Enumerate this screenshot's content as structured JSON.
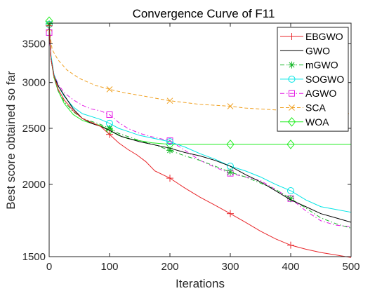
{
  "chart_data": {
    "type": "line",
    "title": "Convergence Curve of F11",
    "xlabel": "Iterations",
    "ylabel": "Best score obtained so far",
    "xlim": [
      0,
      500
    ],
    "ylim": [
      1500,
      3800
    ],
    "yscale": "log",
    "xticks": [
      0,
      100,
      200,
      300,
      400,
      500
    ],
    "yticks": [
      1500,
      2000,
      2500,
      3000,
      3500
    ],
    "grid": false,
    "legend_position": "top-right",
    "series": [
      {
        "name": "EBGWO",
        "color": "#e8262a",
        "linestyle": "solid",
        "marker": "plus",
        "x": [
          0,
          3,
          8,
          15,
          25,
          40,
          55,
          70,
          85,
          100,
          115,
          130,
          145,
          160,
          175,
          200,
          225,
          250,
          275,
          300,
          325,
          350,
          375,
          400,
          425,
          450,
          475,
          500
        ],
        "y": [
          3760,
          3300,
          3080,
          2920,
          2800,
          2680,
          2600,
          2560,
          2520,
          2440,
          2360,
          2300,
          2250,
          2190,
          2110,
          2050,
          1970,
          1900,
          1840,
          1780,
          1720,
          1660,
          1610,
          1570,
          1545,
          1525,
          1510,
          1495
        ],
        "marker_x": [
          0,
          100,
          200,
          300,
          400
        ],
        "marker_y": [
          3760,
          2440,
          2050,
          1780,
          1570
        ]
      },
      {
        "name": "GWO",
        "color": "#000000",
        "linestyle": "solid",
        "marker": "none",
        "x": [
          0,
          3,
          8,
          15,
          25,
          40,
          55,
          70,
          85,
          100,
          120,
          150,
          175,
          200,
          225,
          250,
          275,
          300,
          325,
          350,
          375,
          400,
          425,
          450,
          475,
          500
        ],
        "y": [
          3750,
          3300,
          3080,
          2960,
          2850,
          2700,
          2600,
          2550,
          2520,
          2480,
          2420,
          2370,
          2340,
          2310,
          2270,
          2240,
          2200,
          2150,
          2080,
          2020,
          1950,
          1880,
          1830,
          1780,
          1750,
          1720
        ]
      },
      {
        "name": "mGWO",
        "color": "#17b82a",
        "linestyle": "dashdot",
        "marker": "asterisk",
        "x": [
          0,
          3,
          8,
          15,
          25,
          40,
          55,
          70,
          85,
          100,
          115,
          130,
          150,
          175,
          200,
          225,
          250,
          275,
          300,
          325,
          350,
          375,
          400,
          425,
          450,
          475,
          500
        ],
        "y": [
          3790,
          3300,
          3060,
          2900,
          2780,
          2670,
          2600,
          2570,
          2540,
          2500,
          2450,
          2420,
          2380,
          2340,
          2290,
          2240,
          2200,
          2150,
          2100,
          2060,
          2010,
          1960,
          1890,
          1820,
          1750,
          1710,
          1680
        ],
        "marker_x": [
          0,
          100,
          200,
          300,
          400
        ],
        "marker_y": [
          3790,
          2500,
          2290,
          2100,
          1890
        ]
      },
      {
        "name": "SOGWO",
        "color": "#00e5e5",
        "linestyle": "solid",
        "marker": "circle",
        "x": [
          0,
          3,
          8,
          15,
          25,
          40,
          55,
          70,
          85,
          100,
          115,
          130,
          150,
          175,
          200,
          225,
          250,
          275,
          300,
          325,
          350,
          375,
          400,
          425,
          450,
          475,
          500
        ],
        "y": [
          3780,
          3350,
          3100,
          2960,
          2840,
          2720,
          2650,
          2620,
          2590,
          2550,
          2500,
          2470,
          2430,
          2400,
          2370,
          2320,
          2260,
          2210,
          2150,
          2110,
          2060,
          2000,
          1950,
          1880,
          1830,
          1810,
          1790
        ],
        "marker_x": [
          0,
          100,
          200,
          300,
          400
        ],
        "marker_y": [
          3780,
          2550,
          2370,
          2150,
          1950
        ]
      },
      {
        "name": "AGWO",
        "color": "#e41ae4",
        "linestyle": "dashdot",
        "marker": "square",
        "x": [
          0,
          3,
          8,
          15,
          25,
          40,
          55,
          70,
          85,
          100,
          115,
          130,
          150,
          175,
          200,
          225,
          250,
          275,
          300,
          325,
          350,
          375,
          400,
          425,
          450,
          475,
          500
        ],
        "y": [
          3660,
          3300,
          3100,
          2980,
          2880,
          2800,
          2740,
          2700,
          2680,
          2640,
          2560,
          2500,
          2450,
          2410,
          2380,
          2290,
          2200,
          2140,
          2090,
          2060,
          2030,
          1960,
          1890,
          1800,
          1730,
          1700,
          1690
        ],
        "marker_x": [
          0,
          100,
          200,
          300,
          400
        ],
        "marker_y": [
          3660,
          2640,
          2380,
          2090,
          1890
        ]
      },
      {
        "name": "SCA",
        "color": "#f0a020",
        "linestyle": "dash",
        "marker": "x",
        "x": [
          0,
          5,
          15,
          30,
          50,
          75,
          100,
          125,
          150,
          175,
          200,
          225,
          250,
          275,
          300,
          325,
          350,
          375,
          400,
          425,
          450,
          475,
          500
        ],
        "y": [
          3720,
          3420,
          3280,
          3150,
          3050,
          2970,
          2920,
          2880,
          2850,
          2820,
          2790,
          2770,
          2750,
          2740,
          2730,
          2710,
          2700,
          2690,
          2680,
          2670,
          2660,
          2655,
          2650
        ],
        "marker_x": [
          0,
          100,
          200,
          300,
          400
        ],
        "marker_y": [
          3720,
          2920,
          2790,
          2730,
          2680
        ]
      },
      {
        "name": "WOA",
        "color": "#22ee22",
        "linestyle": "solid",
        "marker": "diamond",
        "x": [
          0,
          3,
          8,
          15,
          25,
          40,
          55,
          70,
          85,
          100,
          115,
          130,
          150,
          170,
          190,
          210,
          230,
          250,
          300,
          350,
          400,
          450,
          500
        ],
        "y": [
          3830,
          3300,
          3060,
          2900,
          2760,
          2640,
          2580,
          2550,
          2530,
          2480,
          2430,
          2400,
          2380,
          2360,
          2350,
          2345,
          2345,
          2345,
          2345,
          2345,
          2345,
          2345,
          2345
        ],
        "marker_x": [
          0,
          100,
          200,
          300,
          400
        ],
        "marker_y": [
          3830,
          2480,
          2345,
          2345,
          2345
        ]
      }
    ]
  }
}
